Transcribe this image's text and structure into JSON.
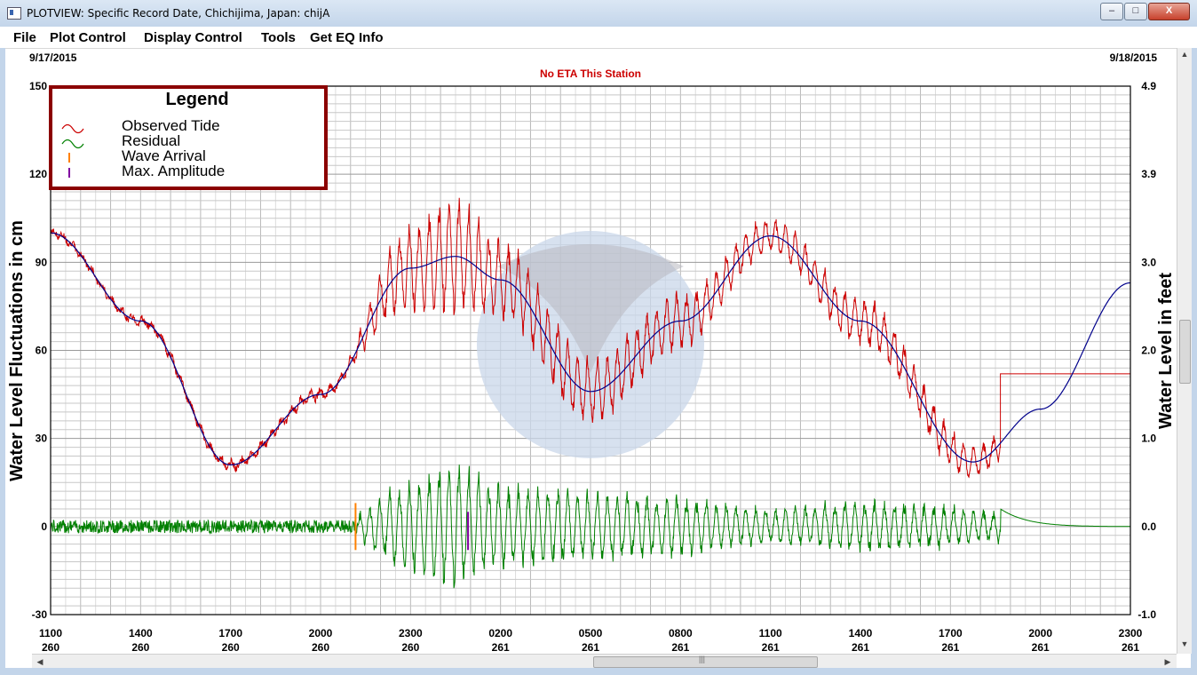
{
  "window": {
    "title": "PLOTVIEW: Specific Record Date, Chichijima, Japan: chijA",
    "buttons": {
      "minimize": "–",
      "maximize": "□",
      "close": "X"
    }
  },
  "menu": [
    {
      "label": "File"
    },
    {
      "label": "Plot Control"
    },
    {
      "label": "Display Control"
    },
    {
      "label": "Tools"
    },
    {
      "label": "Get EQ Info"
    }
  ],
  "scrollbars": {
    "up": "▲",
    "down": "▼",
    "left": "◀",
    "right": "▶",
    "grip": "|||"
  },
  "chart_data": {
    "type": "line",
    "start_date_label": "9/17/2015",
    "end_date_label": "9/18/2015",
    "eta_note": "No ETA This Station",
    "ylabel_left": "Water Level Fluctuations in cm",
    "ylabel_right": "Water Level in feet",
    "ylim_left": [
      -30,
      150
    ],
    "ylim_right": [
      -1.0,
      4.9
    ],
    "yticks_left": [
      "150",
      "120",
      "90",
      "60",
      "30",
      "0",
      "-30"
    ],
    "yticks_right": [
      "4.9",
      "3.9",
      "3.0",
      "2.0",
      "1.0",
      "0.0",
      "-1.0"
    ],
    "x_ticks": [
      {
        "time": "1100",
        "day": "260"
      },
      {
        "time": "1400",
        "day": "260"
      },
      {
        "time": "1700",
        "day": "260"
      },
      {
        "time": "2000",
        "day": "260"
      },
      {
        "time": "2300",
        "day": "260"
      },
      {
        "time": "0200",
        "day": "261"
      },
      {
        "time": "0500",
        "day": "261"
      },
      {
        "time": "0800",
        "day": "261"
      },
      {
        "time": "1100",
        "day": "261"
      },
      {
        "time": "1400",
        "day": "261"
      },
      {
        "time": "1700",
        "day": "261"
      },
      {
        "time": "2000",
        "day": "261"
      },
      {
        "time": "2300",
        "day": "261"
      }
    ],
    "grid": true,
    "legend": {
      "title": "Legend",
      "placement": "top-left",
      "entries": [
        {
          "label": "Observed Tide",
          "color": "#cc0000"
        },
        {
          "label": "Residual",
          "color": "#008000"
        },
        {
          "label": "Wave Arrival",
          "color": "#ff8000"
        },
        {
          "label": "Max. Amplitude",
          "color": "#8000a0"
        }
      ]
    },
    "series_colors": {
      "observed": "#cc0000",
      "predicted": "#00008b",
      "residual": "#008000"
    },
    "predicted_tide": {
      "x": [
        "260 11:00",
        "260 14:00",
        "260 17:00",
        "260 20:00",
        "260 23:00",
        "261 00:30",
        "261 02:00",
        "261 05:00",
        "261 08:00",
        "261 11:00",
        "261 14:00",
        "261 17:45",
        "261 20:00",
        "261 23:00"
      ],
      "y": [
        100,
        70,
        21,
        45,
        88,
        92,
        84,
        46,
        70,
        99,
        70,
        22,
        40,
        83
      ]
    },
    "observed_envelope_amplitude_cm": [
      {
        "x": "260 11:00",
        "amp": 1
      },
      {
        "x": "260 21:00",
        "amp": 2
      },
      {
        "x": "260 22:30",
        "amp": 14
      },
      {
        "x": "261 00:30",
        "amp": 22
      },
      {
        "x": "261 02:00",
        "amp": 14
      },
      {
        "x": "261 05:00",
        "amp": 12
      },
      {
        "x": "261 08:00",
        "amp": 10
      },
      {
        "x": "261 11:00",
        "amp": 6
      },
      {
        "x": "261 14:00",
        "amp": 9
      },
      {
        "x": "261 17:00",
        "amp": 7
      },
      {
        "x": "261 18:40",
        "amp": 5
      }
    ],
    "observed_flat_after": {
      "x": "261 18:40",
      "y": 52
    },
    "wave_arrival": {
      "x": "260 21:10"
    },
    "max_amplitude": {
      "x": "261 00:55"
    },
    "residual_end_bump": {
      "x": "261 18:40",
      "y": 6
    }
  }
}
